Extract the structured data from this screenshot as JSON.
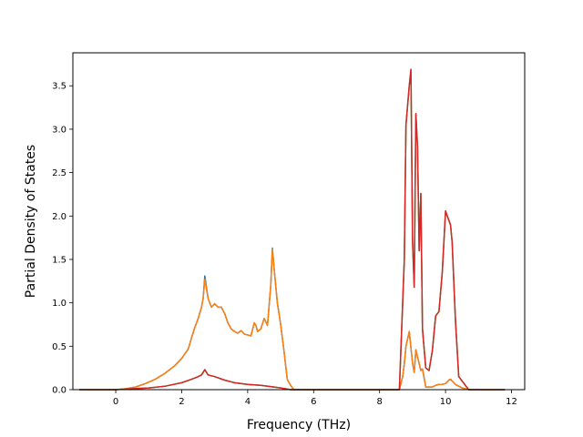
{
  "chart_data": {
    "type": "line",
    "title": "",
    "xlabel": "Frequency (THz)",
    "ylabel": "Partial Density of States",
    "xlim": [
      -1.3,
      12.4
    ],
    "ylim": [
      0,
      3.88
    ],
    "xticks": [
      0,
      2,
      4,
      6,
      8,
      10,
      12
    ],
    "xtick_labels": [
      "0",
      "2",
      "4",
      "6",
      "8",
      "10",
      "12"
    ],
    "yticks": [
      0.0,
      0.5,
      1.0,
      1.5,
      2.0,
      2.5,
      3.0,
      3.5
    ],
    "ytick_labels": [
      "0.0",
      "0.5",
      "1.0",
      "1.5",
      "2.0",
      "2.5",
      "3.0",
      "3.5"
    ],
    "grid": false,
    "legend": "none",
    "series": [
      {
        "color": "#1f77b4",
        "x": [
          -1.1,
          0,
          0.3,
          0.6,
          0.9,
          1.2,
          1.5,
          1.8,
          2.0,
          2.2,
          2.3,
          2.4,
          2.5,
          2.6,
          2.65,
          2.7,
          2.8,
          2.9,
          3.0,
          3.1,
          3.2,
          3.3,
          3.4,
          3.5,
          3.6,
          3.7,
          3.8,
          3.9,
          4.0,
          4.1,
          4.2,
          4.25,
          4.3,
          4.4,
          4.5,
          4.6,
          4.7,
          4.75,
          4.8,
          4.9,
          5.0,
          5.1,
          5.2,
          5.3,
          5.4,
          6.0,
          7.0,
          8.0,
          8.6,
          8.7,
          8.75,
          8.8,
          8.9,
          9.0,
          9.05,
          9.1,
          9.2,
          9.25,
          9.3,
          9.4,
          9.5,
          9.6,
          9.7,
          9.8,
          9.9,
          10.0,
          10.1,
          10.15,
          10.2,
          10.3,
          10.4,
          10.5,
          10.6,
          10.7,
          10.8,
          11.0,
          11.8
        ],
        "y": [
          0,
          0,
          0.01,
          0.03,
          0.07,
          0.12,
          0.19,
          0.28,
          0.36,
          0.47,
          0.6,
          0.72,
          0.82,
          0.95,
          1.05,
          1.31,
          1.05,
          0.95,
          0.99,
          0.95,
          0.95,
          0.88,
          0.77,
          0.7,
          0.67,
          0.65,
          0.68,
          0.64,
          0.63,
          0.62,
          0.77,
          0.74,
          0.67,
          0.7,
          0.82,
          0.74,
          1.2,
          1.63,
          1.4,
          1.0,
          0.75,
          0.45,
          0.12,
          0.05,
          0,
          0,
          0,
          0,
          0,
          0.15,
          0.3,
          0.5,
          0.67,
          0.3,
          0.2,
          0.46,
          0.3,
          0.22,
          0.24,
          0.03,
          0.03,
          0.03,
          0.05,
          0.06,
          0.06,
          0.07,
          0.11,
          0.12,
          0.1,
          0.06,
          0.04,
          0.02,
          0.01,
          0,
          0,
          0,
          0
        ]
      },
      {
        "color": "#ff7f0e",
        "x": [
          -1.1,
          0,
          0.3,
          0.6,
          0.9,
          1.2,
          1.5,
          1.8,
          2.0,
          2.2,
          2.3,
          2.4,
          2.5,
          2.6,
          2.65,
          2.7,
          2.8,
          2.9,
          3.0,
          3.1,
          3.2,
          3.3,
          3.4,
          3.5,
          3.6,
          3.7,
          3.8,
          3.9,
          4.0,
          4.1,
          4.2,
          4.25,
          4.3,
          4.4,
          4.5,
          4.6,
          4.7,
          4.75,
          4.8,
          4.9,
          5.0,
          5.1,
          5.2,
          5.3,
          5.4,
          6.0,
          7.0,
          8.0,
          8.6,
          8.7,
          8.75,
          8.8,
          8.9,
          9.0,
          9.05,
          9.1,
          9.2,
          9.25,
          9.3,
          9.4,
          9.5,
          9.6,
          9.7,
          9.8,
          9.9,
          10.0,
          10.1,
          10.15,
          10.2,
          10.3,
          10.4,
          10.5,
          10.6,
          10.7,
          10.8,
          11.0,
          11.8
        ],
        "y": [
          0,
          0,
          0.01,
          0.03,
          0.07,
          0.12,
          0.19,
          0.28,
          0.36,
          0.47,
          0.6,
          0.72,
          0.82,
          0.95,
          1.05,
          1.27,
          1.05,
          0.95,
          0.99,
          0.95,
          0.95,
          0.88,
          0.77,
          0.7,
          0.67,
          0.65,
          0.68,
          0.64,
          0.63,
          0.62,
          0.77,
          0.74,
          0.67,
          0.7,
          0.82,
          0.74,
          1.2,
          1.62,
          1.4,
          1.0,
          0.75,
          0.45,
          0.12,
          0.05,
          0,
          0,
          0,
          0,
          0,
          0.15,
          0.3,
          0.5,
          0.67,
          0.3,
          0.2,
          0.46,
          0.3,
          0.22,
          0.24,
          0.03,
          0.03,
          0.03,
          0.05,
          0.06,
          0.06,
          0.07,
          0.11,
          0.12,
          0.1,
          0.06,
          0.04,
          0.02,
          0.01,
          0,
          0,
          0,
          0
        ]
      },
      {
        "color": "#2ca02c",
        "x": [
          -1.1,
          0,
          0.5,
          1.0,
          1.5,
          2.0,
          2.3,
          2.5,
          2.6,
          2.7,
          2.8,
          3.0,
          3.3,
          3.6,
          4.0,
          4.4,
          4.8,
          5.0,
          5.3,
          6.0,
          7.0,
          8.0,
          8.6,
          8.75,
          8.8,
          8.9,
          8.95,
          9.0,
          9.05,
          9.1,
          9.15,
          9.2,
          9.25,
          9.3,
          9.4,
          9.5,
          9.6,
          9.7,
          9.8,
          9.9,
          10.0,
          10.1,
          10.15,
          10.2,
          10.3,
          10.4,
          10.5,
          10.6,
          10.7,
          11.0,
          11.8
        ],
        "y": [
          0,
          0,
          0.01,
          0.02,
          0.04,
          0.08,
          0.12,
          0.15,
          0.17,
          0.23,
          0.17,
          0.15,
          0.11,
          0.08,
          0.06,
          0.05,
          0.03,
          0.02,
          0,
          0,
          0,
          0,
          0,
          1.5,
          3.05,
          3.5,
          3.68,
          1.7,
          1.18,
          3.17,
          2.8,
          1.6,
          2.26,
          0.7,
          0.25,
          0.22,
          0.45,
          0.85,
          0.9,
          1.35,
          2.05,
          1.95,
          1.9,
          1.7,
          0.8,
          0.15,
          0.1,
          0.05,
          0,
          0,
          0
        ]
      },
      {
        "color": "#d62728",
        "x": [
          -1.1,
          0,
          0.5,
          1.0,
          1.5,
          2.0,
          2.3,
          2.5,
          2.6,
          2.7,
          2.8,
          3.0,
          3.3,
          3.6,
          4.0,
          4.4,
          4.8,
          5.0,
          5.3,
          6.0,
          7.0,
          8.0,
          8.6,
          8.75,
          8.8,
          8.9,
          8.95,
          9.0,
          9.05,
          9.1,
          9.15,
          9.2,
          9.25,
          9.3,
          9.4,
          9.5,
          9.6,
          9.7,
          9.8,
          9.9,
          10.0,
          10.1,
          10.15,
          10.2,
          10.3,
          10.4,
          10.5,
          10.6,
          10.7,
          11.0,
          11.8
        ],
        "y": [
          0,
          0,
          0.01,
          0.02,
          0.04,
          0.08,
          0.12,
          0.15,
          0.17,
          0.23,
          0.17,
          0.15,
          0.11,
          0.08,
          0.06,
          0.05,
          0.03,
          0.02,
          0,
          0,
          0,
          0,
          0,
          1.5,
          3.05,
          3.5,
          3.69,
          1.7,
          1.18,
          3.18,
          2.8,
          1.6,
          2.26,
          0.7,
          0.25,
          0.22,
          0.45,
          0.85,
          0.9,
          1.35,
          2.06,
          1.95,
          1.9,
          1.7,
          0.8,
          0.15,
          0.1,
          0.05,
          0,
          0,
          0
        ]
      }
    ]
  }
}
